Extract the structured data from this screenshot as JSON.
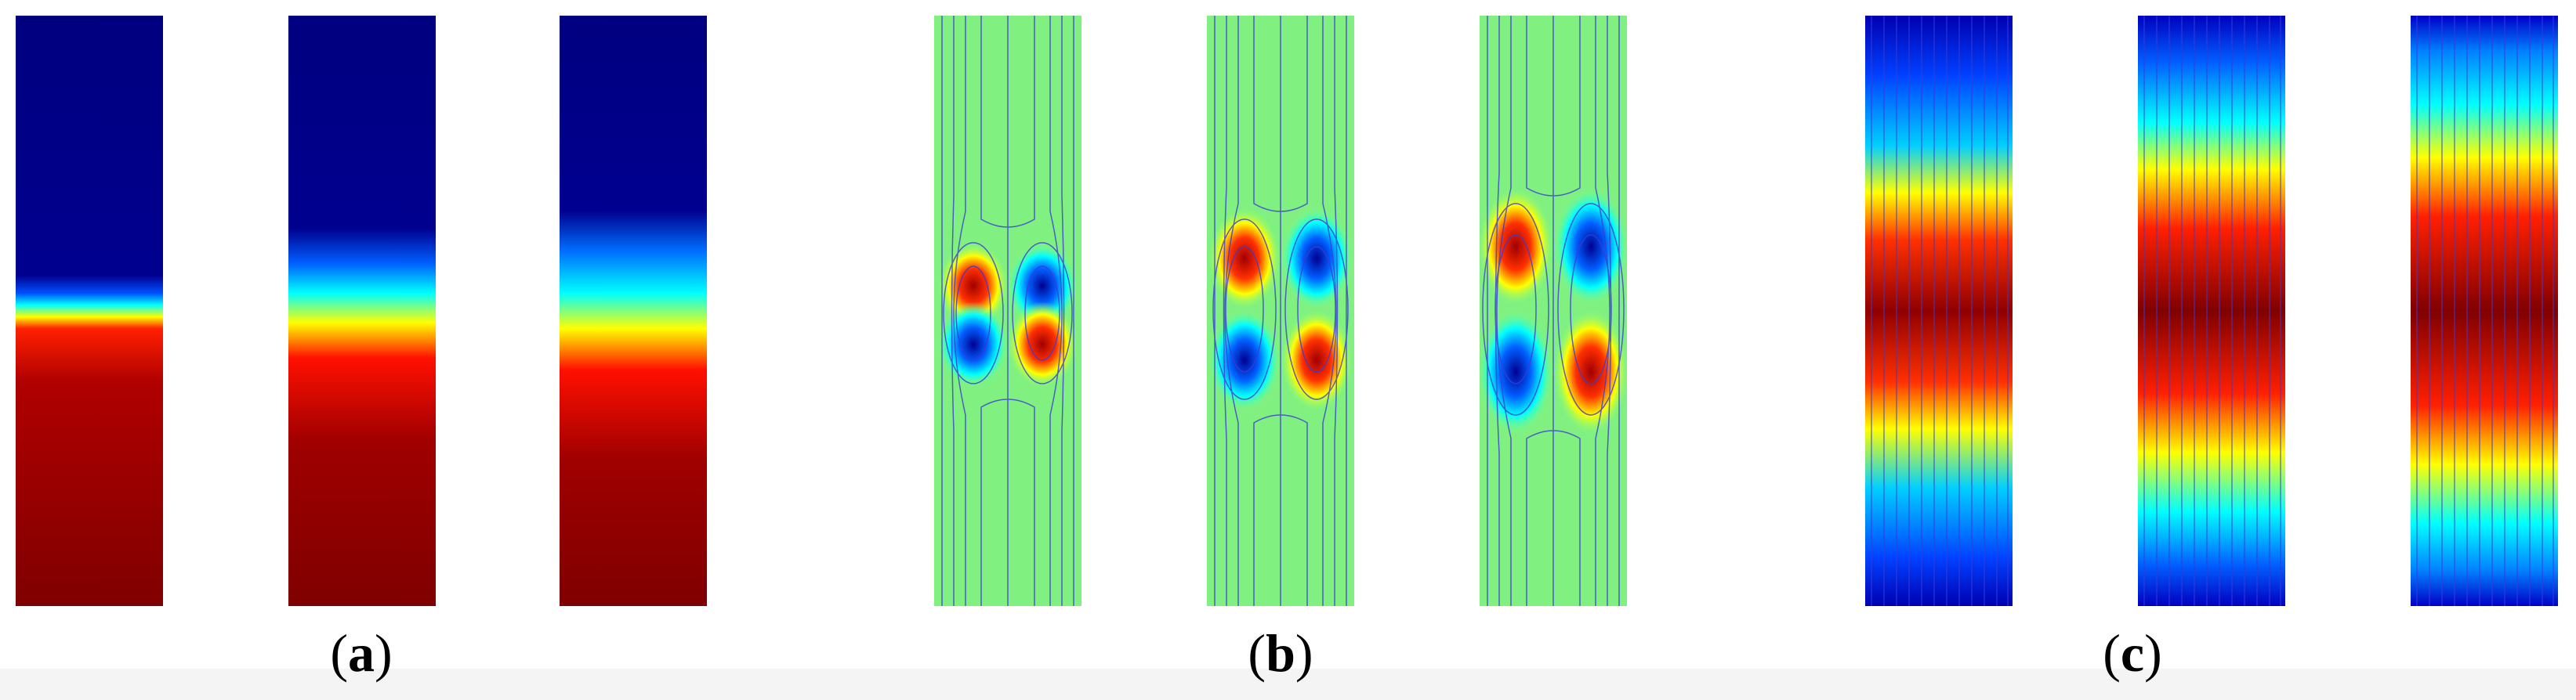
{
  "figure": {
    "groups": [
      {
        "label_open": "(",
        "label_letter": "a",
        "label_close": ")"
      },
      {
        "label_open": "(",
        "label_letter": "b",
        "label_close": ")"
      },
      {
        "label_open": "(",
        "label_letter": "c",
        "label_close": ")"
      }
    ]
  },
  "colors": {
    "colormap_jet": [
      "#00007f",
      "#0000ff",
      "#00a0ff",
      "#00ffff",
      "#80ff80",
      "#ffff00",
      "#ff8000",
      "#ff0000",
      "#7f0000"
    ],
    "streamline": "#3b3bd6"
  }
}
